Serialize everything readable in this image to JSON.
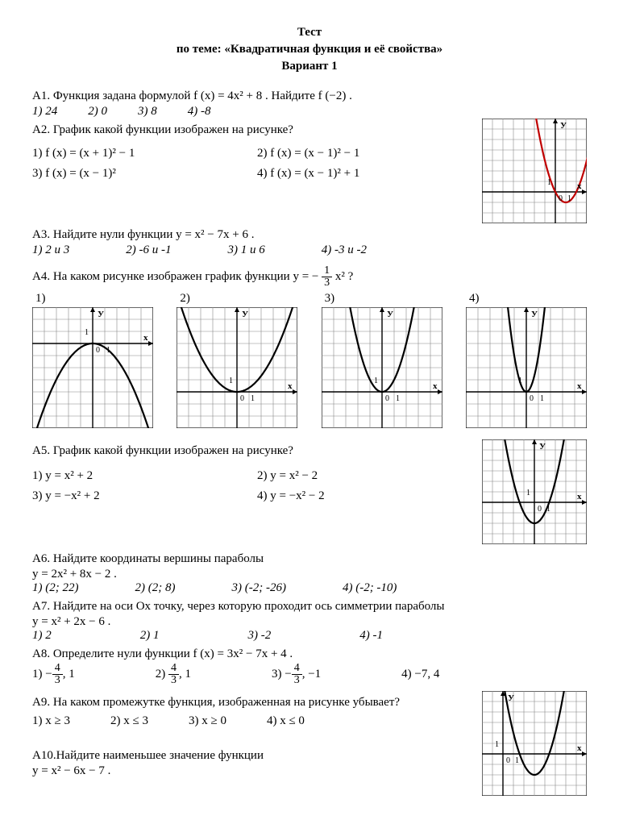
{
  "title": {
    "l1": "Тест",
    "l2": "по теме: «Квадратичная функция и её свойства»",
    "l3": "Вариант 1"
  },
  "a1": {
    "q": "А1. Функция задана формулой   f (x) = 4x² + 8  .   Найдите   f (−2) .",
    "o1": "1) 24",
    "o2": "2) 0",
    "o3": "3) 8",
    "o4": "4) -8"
  },
  "a2": {
    "q": "А2. График какой функции изображен на рисунке?",
    "o1": "1)   f (x) = (x + 1)² − 1",
    "o2": "2)  f (x) = (x − 1)² − 1",
    "o3": "3)  f (x) = (x − 1)²",
    "o4": "4)  f (x) = (x − 1)² + 1",
    "chart": {
      "type": "parabola",
      "grid_n": 8,
      "size": 130,
      "vertex": [
        1,
        -1
      ],
      "a": 1,
      "color": "#c00000",
      "axis_labels": {
        "x": "х",
        "y": "У",
        "origin": "0",
        "one": "1"
      }
    }
  },
  "a3": {
    "q": "А3. Найдите нули функции    y = x² − 7x + 6   .",
    "o1": "1) 2  и 3",
    "o2": "2) -6  и -1",
    "o3": "3) 1 и 6",
    "o4": "4) -3  и  -2"
  },
  "a4": {
    "q_pre": "А4. На каком рисунке изображен график функции   y = −",
    "q_post": "x² ?",
    "charts": [
      {
        "n": "1)",
        "vertex": [
          0,
          0
        ],
        "a": -0.33,
        "color": "#000",
        "wide": true
      },
      {
        "n": "2)",
        "vertex": [
          0,
          0
        ],
        "a": 0.33,
        "color": "#000",
        "wide": true
      },
      {
        "n": "3)",
        "vertex": [
          0,
          0
        ],
        "a": 1,
        "color": "#000",
        "wide": false
      },
      {
        "n": "4)",
        "vertex": [
          0,
          0
        ],
        "a": 3,
        "color": "#000",
        "wide": false
      }
    ],
    "chart_size": 150
  },
  "a5": {
    "q": "А5. График какой функции изображен на рисунке?",
    "o1": "1)   y = x² + 2",
    "o2": "2)  y = x² − 2",
    "o3": "3)  y = −x² + 2",
    "o4": "4)  y = −x² − 2",
    "chart": {
      "vertex": [
        0,
        -2
      ],
      "a": 1,
      "color": "#000",
      "size": 130
    }
  },
  "a6": {
    "q": "А6. Найдите координаты вершины параболы",
    "f": " y = 2x² + 8x − 2  .",
    "o1": "1) (2; 22)",
    "o2": "2) (2; 8)",
    "o3": "3) (-2; -26)",
    "o4": "4) (-2; -10)"
  },
  "a7": {
    "q": "А7. Найдите на оси   Ох  точку, через которую проходит ось симметрии параболы",
    "f": "   y = x² + 2x − 6   .",
    "o1": "1) 2",
    "o2": "2) 1",
    "o3": "3) -2",
    "o4": "4) -1"
  },
  "a8": {
    "q": "А8. Определите нули функции   f (x) = 3x² − 7x + 4 .",
    "o1_pre": "1)  −",
    "o1_post": ",   1",
    "o2_pre": "2)  ",
    "o2_post": ",  1",
    "o3_pre": "3)  −",
    "o3_post": ",   −1",
    "o4": "4)  −7,   4"
  },
  "a9": {
    "q": "А9. На каком промежутке функция,  изображенная на рисунке убывает?",
    "o1": "1)  x ≥ 3",
    "o2": "2)  x ≤ 3",
    "o3": "3)  x ≥ 0",
    "o4": "4)  x ≤ 0",
    "chart": {
      "vertex": [
        3,
        -2
      ],
      "a": 1,
      "color": "#000",
      "size": 130
    }
  },
  "a10": {
    "q": "А10.Найдите наименьшее значение  функции",
    "f": "   y = x² − 6x − 7   ."
  },
  "style": {
    "grid_color": "#888888",
    "axis_color": "#000000",
    "bg": "#ffffff",
    "font": "Times New Roman"
  }
}
